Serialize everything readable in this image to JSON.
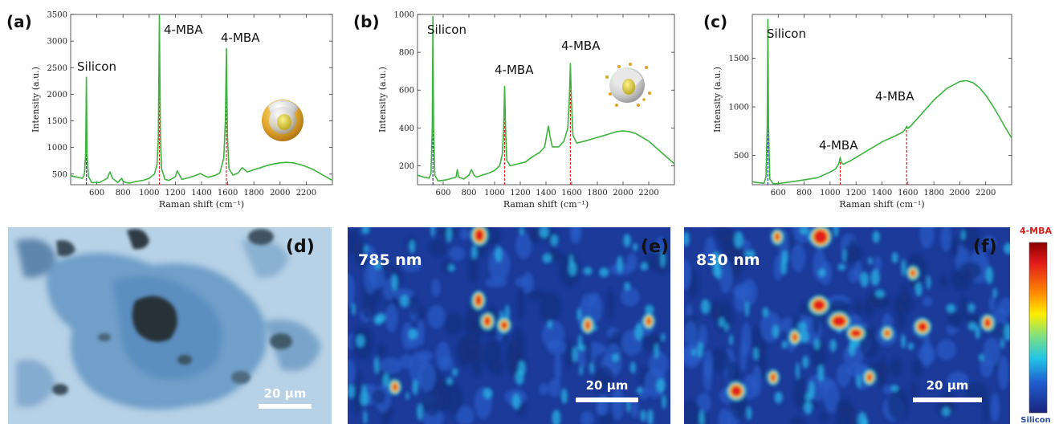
{
  "figure": {
    "panels": {
      "a": {
        "label": "(a)"
      },
      "b": {
        "label": "(b)"
      },
      "c": {
        "label": "(c)"
      },
      "d": {
        "label": "(d)",
        "scale_bar": "20 μm"
      },
      "e": {
        "label": "(e)",
        "wavelength": "785 nm",
        "scale_bar": "20 μm"
      },
      "f": {
        "label": "(f)",
        "wavelength": "830 nm",
        "scale_bar": "20 μm"
      }
    },
    "colorbar": {
      "top_label": "4-MBA",
      "bottom_label": "Silicon",
      "top_color": "#d0231c",
      "bottom_color": "#2a4aa8"
    },
    "colors": {
      "spectrum": "#3db43d",
      "silicon_marker": "#1f2fa8",
      "mba_marker": "#e02020"
    }
  },
  "chart_data": [
    {
      "type": "line",
      "panel": "a",
      "xlabel": "Raman shift (cm⁻¹)",
      "ylabel": "Intensity (a.u.)",
      "xlim": [
        400,
        2400
      ],
      "ylim": [
        300,
        3500
      ],
      "xticks": [
        600,
        800,
        1000,
        1200,
        1400,
        1600,
        1800,
        2000,
        2200
      ],
      "yticks": [
        500,
        1000,
        1500,
        2000,
        2500,
        3000,
        3500
      ],
      "annotations": [
        {
          "text": "Silicon",
          "x": 520
        },
        {
          "text": "4-MBA",
          "x": 1078
        },
        {
          "text": "4-MBA",
          "x": 1590
        }
      ],
      "markers": [
        {
          "x": 520,
          "color": "blue"
        },
        {
          "x": 1078,
          "color": "red"
        },
        {
          "x": 1590,
          "color": "red"
        }
      ],
      "series": [
        {
          "x": [
            400,
            450,
            490,
            505,
            515,
            520,
            525,
            535,
            560,
            620,
            680,
            700,
            720,
            760,
            790,
            800,
            820,
            850,
            900,
            950,
            1000,
            1040,
            1060,
            1070,
            1078,
            1086,
            1095,
            1120,
            1150,
            1180,
            1200,
            1215,
            1250,
            1300,
            1350,
            1390,
            1420,
            1450,
            1500,
            1540,
            1570,
            1582,
            1590,
            1598,
            1610,
            1640,
            1680,
            1710,
            1750,
            1800,
            1850,
            1900,
            1950,
            2000,
            2050,
            2100,
            2150,
            2200,
            2250,
            2300,
            2350,
            2400
          ],
          "values": [
            470,
            440,
            420,
            500,
            900,
            2320,
            900,
            460,
            340,
            340,
            420,
            540,
            420,
            340,
            420,
            370,
            340,
            330,
            360,
            380,
            420,
            500,
            680,
            1200,
            3480,
            1200,
            600,
            400,
            380,
            420,
            450,
            560,
            400,
            430,
            470,
            510,
            470,
            440,
            470,
            520,
            800,
            1500,
            2860,
            1200,
            600,
            480,
            520,
            620,
            540,
            580,
            620,
            660,
            690,
            710,
            720,
            710,
            680,
            640,
            590,
            520,
            450,
            380
          ]
        }
      ]
    },
    {
      "type": "line",
      "panel": "b",
      "xlabel": "Raman shift (cm⁻¹)",
      "ylabel": "Intensity (a.u.)",
      "xlim": [
        400,
        2400
      ],
      "ylim": [
        100,
        1000
      ],
      "xticks": [
        600,
        800,
        1000,
        1200,
        1400,
        1600,
        1800,
        2000,
        2200
      ],
      "yticks": [
        200,
        400,
        600,
        800,
        1000
      ],
      "annotations": [
        {
          "text": "Silicon",
          "x": 520
        },
        {
          "text": "4-MBA",
          "x": 1078
        },
        {
          "text": "4-MBA",
          "x": 1590
        }
      ],
      "markers": [
        {
          "x": 520,
          "color": "blue"
        },
        {
          "x": 1078,
          "color": "red"
        },
        {
          "x": 1590,
          "color": "red"
        }
      ],
      "series": [
        {
          "x": [
            400,
            450,
            490,
            505,
            515,
            520,
            525,
            535,
            560,
            620,
            700,
            710,
            720,
            760,
            800,
            820,
            840,
            860,
            900,
            950,
            1000,
            1040,
            1060,
            1070,
            1078,
            1086,
            1095,
            1120,
            1180,
            1240,
            1300,
            1350,
            1390,
            1410,
            1420,
            1430,
            1450,
            1500,
            1540,
            1570,
            1582,
            1590,
            1598,
            1610,
            1640,
            1700,
            1750,
            1800,
            1850,
            1900,
            1950,
            2000,
            2050,
            2100,
            2150,
            2200,
            2250,
            2300,
            2350,
            2400
          ],
          "values": [
            150,
            140,
            135,
            160,
            400,
            990,
            400,
            150,
            120,
            125,
            140,
            180,
            140,
            130,
            150,
            180,
            150,
            140,
            150,
            160,
            175,
            200,
            260,
            380,
            620,
            380,
            230,
            200,
            210,
            220,
            250,
            270,
            300,
            380,
            410,
            360,
            300,
            300,
            330,
            400,
            550,
            740,
            550,
            360,
            320,
            330,
            340,
            350,
            360,
            370,
            380,
            385,
            380,
            370,
            350,
            330,
            300,
            270,
            240,
            210
          ]
        }
      ]
    },
    {
      "type": "line",
      "panel": "c",
      "xlabel": "Raman shift (cm⁻¹)",
      "ylabel": "Intensity (a.u.)",
      "xlim": [
        400,
        2400
      ],
      "ylim": [
        200,
        1950
      ],
      "xticks": [
        600,
        800,
        1000,
        1200,
        1400,
        1600,
        1800,
        2000,
        2200
      ],
      "yticks": [
        500,
        1000,
        1500
      ],
      "annotations": [
        {
          "text": "Silicon",
          "x": 520
        },
        {
          "text": "4-MBA",
          "x": 1078
        },
        {
          "text": "4-MBA",
          "x": 1590
        }
      ],
      "markers": [
        {
          "x": 520,
          "color": "blue"
        },
        {
          "x": 1078,
          "color": "red"
        },
        {
          "x": 1590,
          "color": "red"
        }
      ],
      "series": [
        {
          "x": [
            400,
            450,
            490,
            505,
            515,
            520,
            525,
            535,
            560,
            620,
            700,
            800,
            900,
            950,
            1000,
            1040,
            1060,
            1070,
            1078,
            1086,
            1100,
            1150,
            1200,
            1300,
            1400,
            1500,
            1560,
            1580,
            1590,
            1600,
            1620,
            1700,
            1800,
            1900,
            2000,
            2050,
            2100,
            2150,
            2200,
            2250,
            2300,
            2350,
            2400
          ],
          "values": [
            230,
            220,
            215,
            280,
            800,
            1900,
            800,
            260,
            210,
            215,
            230,
            250,
            270,
            300,
            330,
            360,
            400,
            430,
            480,
            430,
            410,
            440,
            480,
            560,
            640,
            700,
            740,
            770,
            800,
            780,
            800,
            920,
            1070,
            1190,
            1260,
            1270,
            1250,
            1200,
            1120,
            1020,
            910,
            790,
            680
          ]
        }
      ]
    }
  ]
}
